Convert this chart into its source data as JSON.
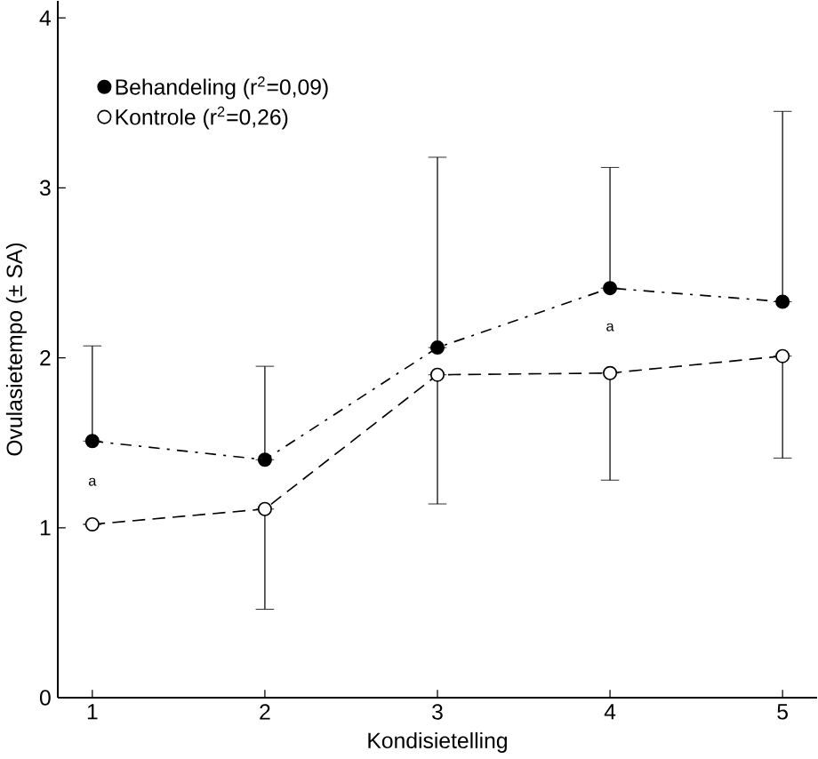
{
  "chart_data": {
    "type": "line",
    "xlabel": "Kondisietelling",
    "ylabel": "Ovulasietempo (± SA)",
    "x": [
      1,
      2,
      3,
      4,
      5
    ],
    "xlim": [
      0.8,
      5.2
    ],
    "xticks": [
      1,
      2,
      3,
      4,
      5
    ],
    "ylim": [
      0,
      4.1
    ],
    "yticks": [
      0,
      1,
      2,
      3,
      4
    ],
    "series": [
      {
        "name": "Behandeling (r$^{2}$=0,09)",
        "color": "#000000",
        "values": [
          1.51,
          1.4,
          2.06,
          2.41,
          2.33
        ],
        "errors": [
          [
            1.51,
            2.07
          ],
          [
            1.4,
            1.95
          ],
          [
            2.06,
            3.18
          ],
          [
            2.41,
            3.12
          ],
          [
            2.33,
            3.45
          ]
        ],
        "line_style": "dashdot"
      },
      {
        "name": "Kontrole (r$^{2}$=0,26)",
        "color": "#000000",
        "values": [
          1.02,
          1.11,
          1.9,
          1.91,
          2.01
        ],
        "errors": [
          null,
          [
            0.52,
            1.11
          ],
          [
            1.14,
            1.9
          ],
          [
            1.28,
            1.91
          ],
          [
            1.41,
            2.01
          ]
        ],
        "line_style": "dashed"
      }
    ],
    "annotations": [
      "a",
      "a"
    ],
    "marker": "circle",
    "legend": "top left",
    "grid": false
  }
}
